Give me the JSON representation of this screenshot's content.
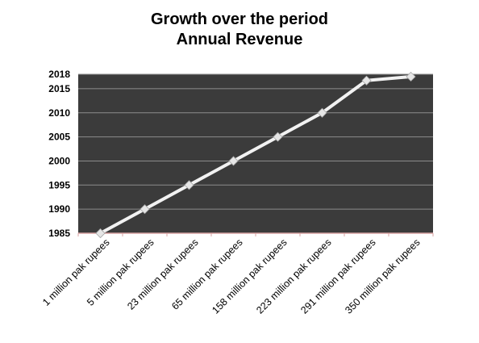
{
  "chart_data": {
    "type": "line",
    "title": [
      "Growth over the period",
      "Annual Revenue"
    ],
    "xlabel": "",
    "ylabel": "",
    "categories": [
      "1 million pak rupees",
      "5 million pak rupees",
      "23 million pak rupees",
      "65 million pak rupees",
      "158 million pak rupees",
      "223 million pak rupees",
      "291 million pak rupees",
      "350 million pak rupees"
    ],
    "series": [
      {
        "values": [
          1985,
          1990,
          1995,
          2000,
          2005,
          2010,
          2016.7,
          2017.5
        ]
      }
    ],
    "ylim": [
      1985,
      2018
    ],
    "y_ticks": [
      {
        "value": 1985,
        "label": "1985"
      },
      {
        "value": 1990,
        "label": "1990"
      },
      {
        "value": 1995,
        "label": "1995"
      },
      {
        "value": 2000,
        "label": "2000"
      },
      {
        "value": 2005,
        "label": "2005"
      },
      {
        "value": 2010,
        "label": "2010"
      },
      {
        "value": 2015,
        "label": "2015"
      },
      {
        "value": 2018,
        "label": "2018"
      }
    ],
    "grid": true,
    "legend": "none",
    "colors": {
      "plot_background": "#3b3b3b",
      "gridline": "#8c8c8c",
      "line": "#f2f2f2",
      "marker": "#e6e6e6",
      "x_axis": "#d9a3a3"
    }
  }
}
